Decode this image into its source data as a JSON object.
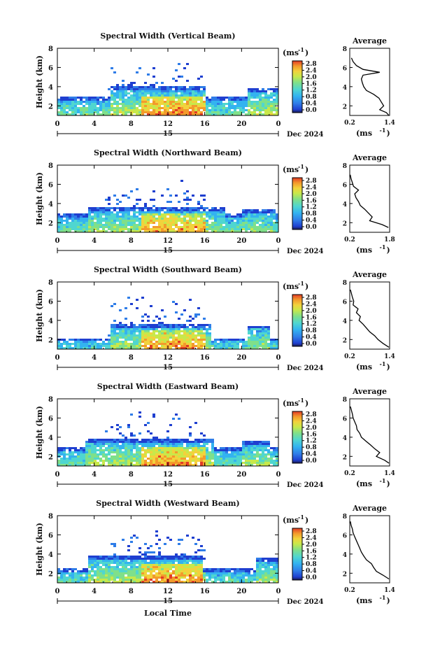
{
  "figure": {
    "xlabel": "Local Time",
    "date_label": "Dec 2024",
    "day_label": "15",
    "colorbar_unit_prefix": "(ms",
    "colorbar_unit_sup": "-1",
    "colorbar_unit_suffix": ")",
    "avg_title": "Average",
    "ylabel": "Height (km)",
    "colormap": [
      "#1a1a4d",
      "#1f3fd0",
      "#2f7de8",
      "#33b3f0",
      "#4fd6d0",
      "#7fe08a",
      "#c8e84a",
      "#f2d23c",
      "#f39a2c",
      "#e23b26"
    ]
  },
  "chart_data": [
    {
      "type": "heatmap",
      "title": "Spectral Width (Vertical Beam)",
      "xlabel": "Local Time",
      "ylabel": "Height (km)",
      "xlim": [
        0,
        24
      ],
      "ylim": [
        1,
        8
      ],
      "x_ticks": [
        "0",
        "4",
        "8",
        "12",
        "16",
        "20",
        "0"
      ],
      "y_ticks": [
        "2",
        "4",
        "6",
        "8"
      ],
      "colorbar": {
        "min": 0.0,
        "max": 2.8,
        "ticks": [
          "2.8",
          "2.4",
          "2.0",
          "1.6",
          "1.2",
          "0.8",
          "0.4",
          "0.0"
        ]
      },
      "average": {
        "xlim": [
          0.2,
          1.4
        ],
        "xticks": [
          "0.2",
          "1.4"
        ],
        "yticks": [
          "2",
          "4",
          "6",
          "8"
        ],
        "heights": [
          1.0,
          1.3,
          1.6,
          2.0,
          2.4,
          2.8,
          3.2,
          3.6,
          4.0,
          4.4,
          4.8,
          5.2,
          5.5,
          5.8,
          6.2,
          6.6,
          7.0
        ],
        "values": [
          1.38,
          1.3,
          1.1,
          1.22,
          1.15,
          1.08,
          0.92,
          0.7,
          0.62,
          0.58,
          0.55,
          0.6,
          1.1,
          0.6,
          0.4,
          0.3,
          0.25
        ]
      }
    },
    {
      "type": "heatmap",
      "title": "Spectral Width (Northward Beam)",
      "xlabel": "Local Time",
      "ylabel": "Height (km)",
      "xlim": [
        0,
        24
      ],
      "ylim": [
        1,
        8
      ],
      "x_ticks": [
        "0",
        "4",
        "8",
        "12",
        "16",
        "20",
        "0"
      ],
      "y_ticks": [
        "2",
        "4",
        "6",
        "8"
      ],
      "colorbar": {
        "min": 0.0,
        "max": 2.8,
        "ticks": [
          "2.8",
          "2.4",
          "2.0",
          "1.6",
          "1.2",
          "0.8",
          "0.4",
          "0.0"
        ]
      },
      "average": {
        "xlim": [
          0.2,
          1.8
        ],
        "xticks": [
          "0.2",
          "1.8"
        ],
        "yticks": [
          "2",
          "4",
          "6",
          "8"
        ],
        "heights": [
          1.5,
          1.8,
          2.2,
          2.6,
          3.0,
          3.4,
          3.8,
          4.2,
          4.6,
          5.0,
          5.4,
          5.8,
          6.2,
          6.6,
          7.0
        ],
        "values": [
          1.75,
          1.5,
          1.0,
          1.1,
          0.95,
          0.8,
          0.62,
          0.55,
          0.45,
          0.4,
          0.55,
          0.35,
          0.3,
          0.25,
          0.22
        ]
      }
    },
    {
      "type": "heatmap",
      "title": "Spectral Width (Southward Beam)",
      "xlabel": "Local Time",
      "ylabel": "Height (km)",
      "xlim": [
        0,
        24
      ],
      "ylim": [
        1,
        8
      ],
      "x_ticks": [
        "0",
        "4",
        "8",
        "12",
        "16",
        "20",
        "0"
      ],
      "y_ticks": [
        "2",
        "4",
        "6",
        "8"
      ],
      "colorbar": {
        "min": 0.0,
        "max": 2.8,
        "ticks": [
          "2.8",
          "2.4",
          "2.0",
          "1.6",
          "1.2",
          "0.8",
          "0.4",
          "0.0"
        ]
      },
      "average": {
        "xlim": [
          0.2,
          1.4
        ],
        "xticks": [
          "0.2",
          "1.4"
        ],
        "yticks": [
          "2",
          "4",
          "6",
          "8"
        ],
        "heights": [
          1.2,
          1.6,
          2.0,
          2.4,
          2.8,
          3.2,
          3.6,
          4.0,
          4.4,
          4.8,
          5.2,
          5.6,
          6.0,
          6.4,
          6.8,
          7.2
        ],
        "values": [
          1.38,
          1.2,
          1.05,
          0.95,
          0.8,
          0.7,
          0.6,
          0.48,
          0.52,
          0.4,
          0.45,
          0.3,
          0.32,
          0.28,
          0.25,
          0.22
        ]
      }
    },
    {
      "type": "heatmap",
      "title": "Spectral Width (Eastward Beam)",
      "xlabel": "Local Time",
      "ylabel": "Height (km)",
      "xlim": [
        0,
        24
      ],
      "ylim": [
        1,
        8
      ],
      "x_ticks": [
        "0",
        "4",
        "8",
        "12",
        "16",
        "20",
        "0"
      ],
      "y_ticks": [
        "2",
        "4",
        "6",
        "8"
      ],
      "colorbar": {
        "min": 0.0,
        "max": 2.8,
        "ticks": [
          "2.8",
          "2.4",
          "2.0",
          "1.6",
          "1.2",
          "0.8",
          "0.4",
          "0.0"
        ]
      },
      "average": {
        "xlim": [
          0.2,
          1.4
        ],
        "xticks": [
          "0.2",
          "1.4"
        ],
        "yticks": [
          "2",
          "4",
          "6",
          "8"
        ],
        "heights": [
          1.3,
          1.6,
          2.0,
          2.4,
          2.8,
          3.2,
          3.6,
          4.0,
          4.4,
          4.8,
          5.2,
          5.6,
          6.0,
          6.4,
          6.8,
          7.2
        ],
        "values": [
          1.38,
          1.25,
          1.0,
          1.1,
          0.95,
          0.82,
          0.68,
          0.55,
          0.5,
          0.42,
          0.4,
          0.35,
          0.3,
          0.28,
          0.25,
          0.22
        ]
      }
    },
    {
      "type": "heatmap",
      "title": "Spectral Width (Westward Beam)",
      "xlabel": "Local Time",
      "ylabel": "Height (km)",
      "xlim": [
        0,
        24
      ],
      "ylim": [
        1,
        8
      ],
      "x_ticks": [
        "0",
        "4",
        "8",
        "12",
        "16",
        "20",
        "0"
      ],
      "y_ticks": [
        "2",
        "4",
        "6",
        "8"
      ],
      "colorbar": {
        "min": 0.0,
        "max": 2.8,
        "ticks": [
          "2.8",
          "2.4",
          "2.0",
          "1.6",
          "1.2",
          "0.8",
          "0.4",
          "0.0"
        ]
      },
      "average": {
        "xlim": [
          0.2,
          1.4
        ],
        "xticks": [
          "0.2",
          "1.4"
        ],
        "yticks": [
          "2",
          "4",
          "6",
          "8"
        ],
        "heights": [
          1.4,
          1.8,
          2.2,
          2.6,
          3.0,
          3.4,
          3.8,
          4.2,
          4.6,
          5.0,
          5.4,
          5.8,
          6.2,
          6.6,
          7.0,
          7.4
        ],
        "values": [
          1.38,
          1.2,
          1.0,
          0.92,
          0.85,
          0.7,
          0.62,
          0.55,
          0.5,
          0.45,
          0.4,
          0.35,
          0.3,
          0.28,
          0.24,
          0.22
        ]
      }
    }
  ]
}
